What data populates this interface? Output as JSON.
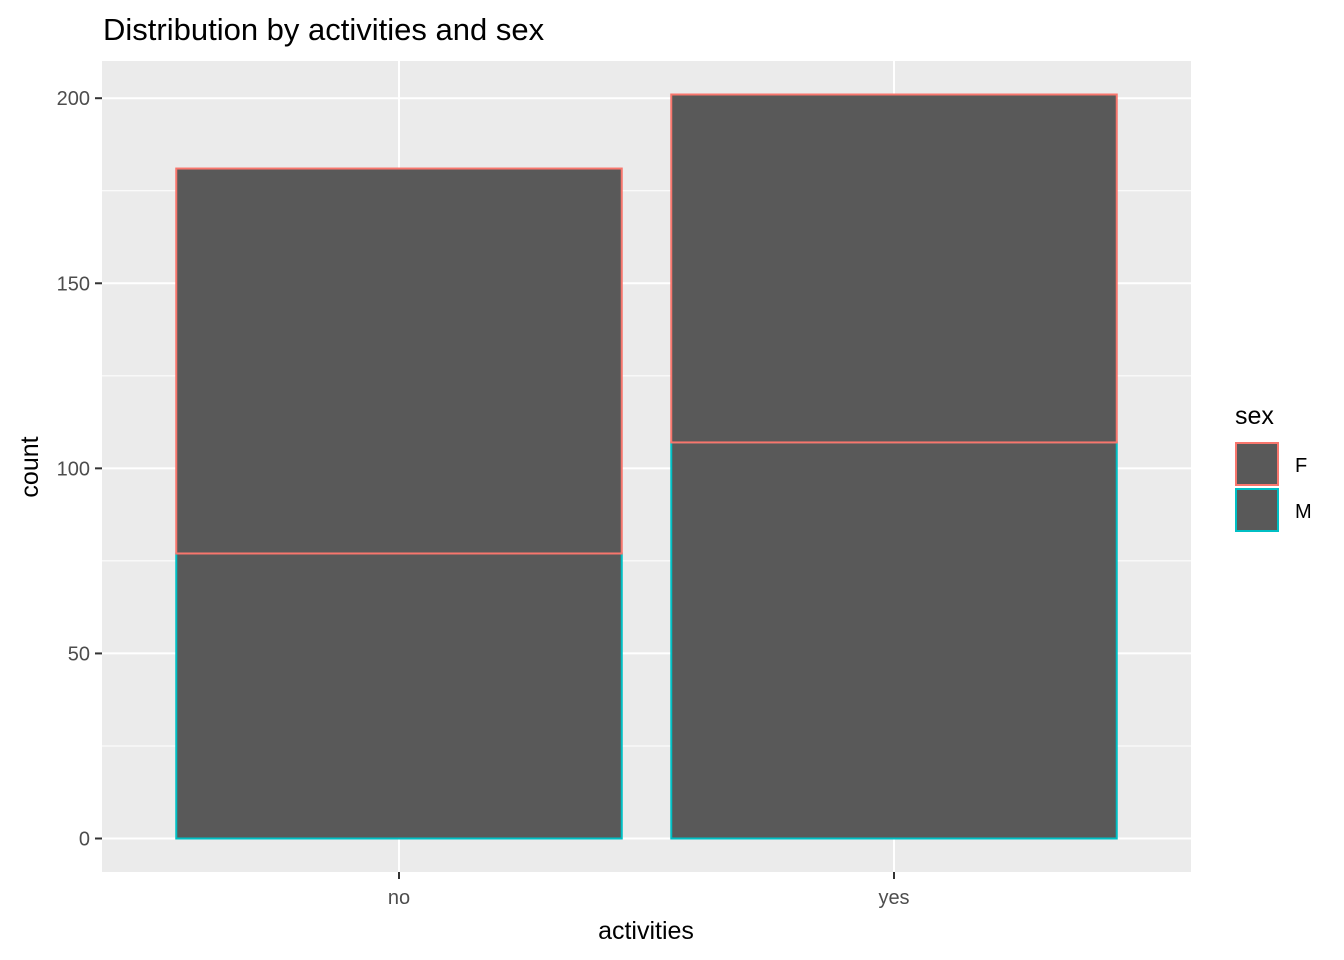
{
  "chart_data": {
    "type": "bar",
    "stacked": true,
    "title": "Distribution by activities and sex",
    "xlabel": "activities",
    "ylabel": "count",
    "categories": [
      "no",
      "yes"
    ],
    "series": [
      {
        "name": "M",
        "values": [
          77,
          107
        ]
      },
      {
        "name": "F",
        "values": [
          104,
          94
        ]
      }
    ],
    "ylim": [
      -9.05,
      210.05
    ],
    "yticks": [
      0,
      50,
      100,
      150,
      200
    ],
    "grid": true,
    "legend": {
      "title": "sex",
      "position": "right",
      "entries": [
        "F",
        "M"
      ]
    },
    "colors": {
      "panel": "#ebebeb",
      "grid": "#ffffff",
      "bar_fill": "#595959",
      "F": "#f8766d",
      "M": "#00bfc4"
    }
  }
}
